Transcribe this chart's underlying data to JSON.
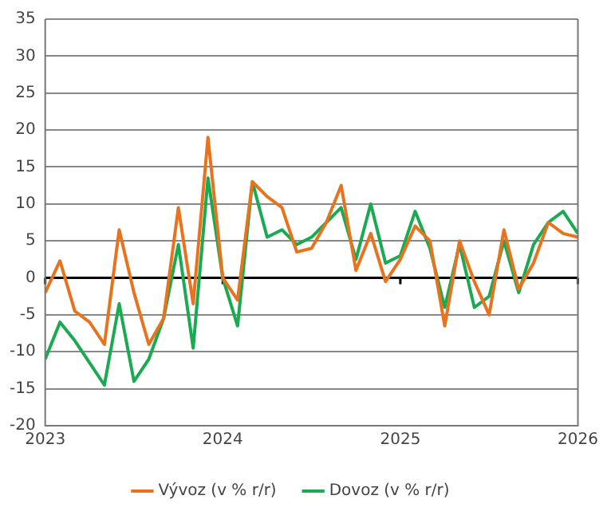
{
  "chart_data": {
    "type": "line",
    "x": [
      "2023-01",
      "2023-02",
      "2023-03",
      "2023-04",
      "2023-05",
      "2023-06",
      "2023-07",
      "2023-08",
      "2023-09",
      "2023-10",
      "2023-11",
      "2023-12",
      "2024-01",
      "2024-02",
      "2024-03",
      "2024-04",
      "2024-05",
      "2024-06",
      "2024-07",
      "2024-08",
      "2024-09",
      "2024-10",
      "2024-11",
      "2024-12",
      "2025-01",
      "2025-02",
      "2025-03",
      "2025-04",
      "2025-05",
      "2025-06",
      "2025-07",
      "2025-08",
      "2025-09",
      "2025-10",
      "2025-11",
      "2025-12",
      "2026-01"
    ],
    "series": [
      {
        "name": "Vývoz (v % r/r)",
        "color": "#e8731e",
        "values": [
          -2,
          2.3,
          -4.5,
          -6,
          -9,
          6.5,
          -2,
          -9,
          -5.5,
          9.5,
          -3.5,
          19,
          0,
          -3,
          13,
          11,
          9.5,
          3.5,
          4,
          7.5,
          12.5,
          1,
          6,
          -0.5,
          2.5,
          7,
          5,
          -6.5,
          5,
          -0.5,
          -5,
          6.5,
          -1.5,
          2,
          7.5,
          6,
          5.5
        ]
      },
      {
        "name": "Dovoz (v % r/r)",
        "color": "#1aaa52",
        "values": [
          -11,
          -6,
          -8.5,
          -11.5,
          -14.5,
          -3.5,
          -14,
          -11,
          -5.5,
          4.5,
          -9.5,
          13.5,
          0,
          -6.5,
          13,
          5.5,
          6.5,
          4.5,
          5.5,
          7.5,
          9.5,
          2.5,
          10,
          2,
          3,
          9,
          4,
          -4,
          4.5,
          -4,
          -2.5,
          5,
          -2,
          4.5,
          7.5,
          9,
          6
        ]
      }
    ],
    "xlim": [
      "2023-01",
      "2026-01"
    ],
    "xticks": [
      "2023",
      "2024",
      "2025",
      "2026"
    ],
    "ylim": [
      -20,
      35
    ],
    "yticks": [
      -20,
      -15,
      -10,
      -5,
      0,
      5,
      10,
      15,
      20,
      25,
      30,
      35
    ],
    "grid": "y",
    "legend": "bottom",
    "marker": "none",
    "line_style": "solid",
    "ref_lines": [
      {
        "axis": "y",
        "value": 0,
        "color": "#000000"
      }
    ]
  }
}
